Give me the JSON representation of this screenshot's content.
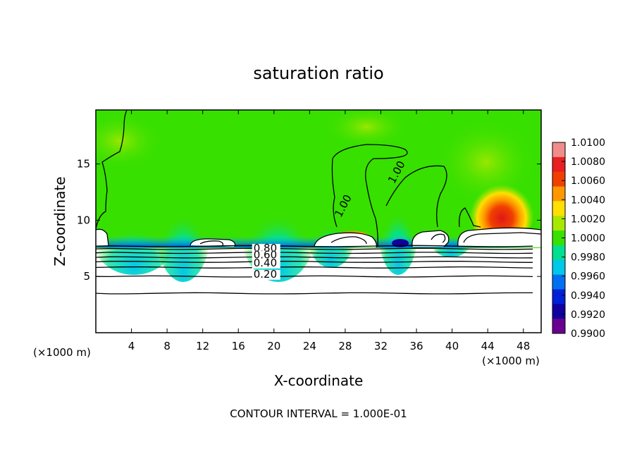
{
  "chart_data": {
    "type": "heatmap",
    "title": "saturation ratio",
    "xlabel": "X-coordinate",
    "ylabel": "Z-coordinate",
    "x_unit_left": "(×1000 m)",
    "x_unit_right": "(×1000 m)",
    "footer": "CONTOUR INTERVAL = 1.000E-01",
    "xlim": [
      0,
      50
    ],
    "ylim": [
      0,
      19.8
    ],
    "x_ticks": [
      4,
      8,
      12,
      16,
      20,
      24,
      28,
      32,
      36,
      40,
      44,
      48
    ],
    "y_ticks": [
      5,
      10,
      15
    ],
    "colorbar": {
      "ticks": [
        "1.0100",
        "1.0080",
        "1.0060",
        "1.0040",
        "1.0020",
        "1.0000",
        "0.9980",
        "0.9960",
        "0.9940",
        "0.9920",
        "0.9900"
      ],
      "colors": [
        "#f08c8c",
        "#e82020",
        "#f04000",
        "#ff9800",
        "#ffe000",
        "#a8e800",
        "#38e000",
        "#00e090",
        "#00c8e8",
        "#0070f0",
        "#0020d8",
        "#1000a0",
        "#6a0090"
      ]
    },
    "contour_labels": [
      {
        "text": "1.00",
        "x": 27.5,
        "z": 10.2,
        "angle": -62
      },
      {
        "text": "1.00",
        "x": 33.5,
        "z": 13.2,
        "angle": -62
      },
      {
        "text": "0.80",
        "x": 17.7,
        "z": 7.2,
        "angle": 0
      },
      {
        "text": "0.60",
        "x": 17.7,
        "z": 6.6,
        "angle": 0
      },
      {
        "text": "0.40",
        "x": 17.7,
        "z": 5.9,
        "angle": 0
      },
      {
        "text": "0.20",
        "x": 17.7,
        "z": 4.9,
        "angle": 0
      }
    ],
    "contour_levels_z": [
      3.5,
      5.0,
      5.8,
      6.3,
      6.7,
      7.1,
      7.45,
      7.7
    ]
  }
}
